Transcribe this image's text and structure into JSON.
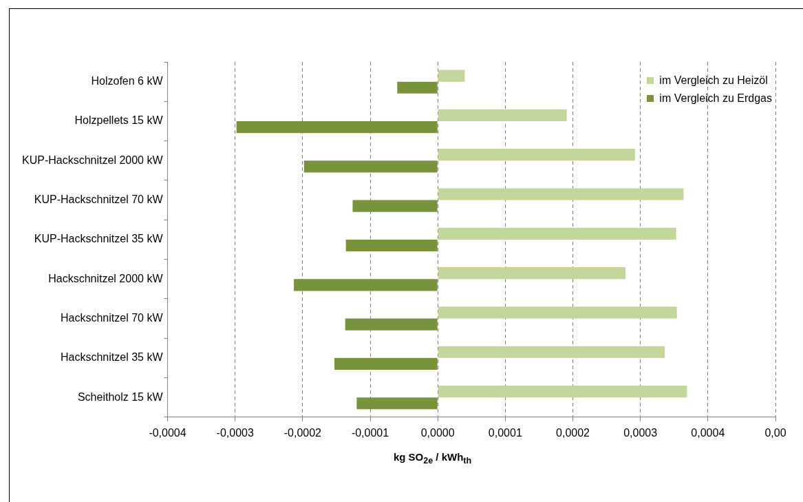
{
  "chart_data": {
    "type": "bar",
    "orientation": "horizontal",
    "xlabel": "kg SO$_{2e}$ / kWh$_{th}$",
    "categories": [
      "Holzofen 6 kW",
      "Holzpellets 15 kW",
      "KUP-Hackschnitzel 2000 kW",
      "KUP-Hackschnitzel 70 kW",
      "KUP-Hackschnitzel 35 kW",
      "Hackschnitzel 2000 kW",
      "Hackschnitzel 70 kW",
      "Hackschnitzel 35 kW",
      "Scheitholz 15 kW"
    ],
    "series": [
      {
        "name": "im Vergleich zu Heizöl",
        "color": "#c3d69b",
        "values": [
          4e-05,
          0.000191,
          0.000292,
          0.000364,
          0.000353,
          0.000278,
          0.000354,
          0.000336,
          0.000369
        ]
      },
      {
        "name": "im Vergleich zu Erdgas",
        "color": "#77933c",
        "values": [
          -6e-05,
          -0.000298,
          -0.000198,
          -0.000126,
          -0.000136,
          -0.000213,
          -0.000137,
          -0.000153,
          -0.00012
        ]
      }
    ],
    "xlim": [
      -0.0004,
      0.0005
    ],
    "xticks": [
      {
        "value": -0.0004,
        "label": "-0,0004"
      },
      {
        "value": -0.0003,
        "label": "-0,0003"
      },
      {
        "value": -0.0002,
        "label": "-0,0002"
      },
      {
        "value": -0.0001,
        "label": "-0,0001"
      },
      {
        "value": 0,
        "label": "0,0000"
      },
      {
        "value": 0.0001,
        "label": "0,0001"
      },
      {
        "value": 0.0002,
        "label": "0,0002"
      },
      {
        "value": 0.0003,
        "label": "0,0003"
      },
      {
        "value": 0.0004,
        "label": "0,0004"
      },
      {
        "value": 0.0005,
        "label": "0,00"
      }
    ],
    "grid": "x",
    "legend": "top right"
  }
}
